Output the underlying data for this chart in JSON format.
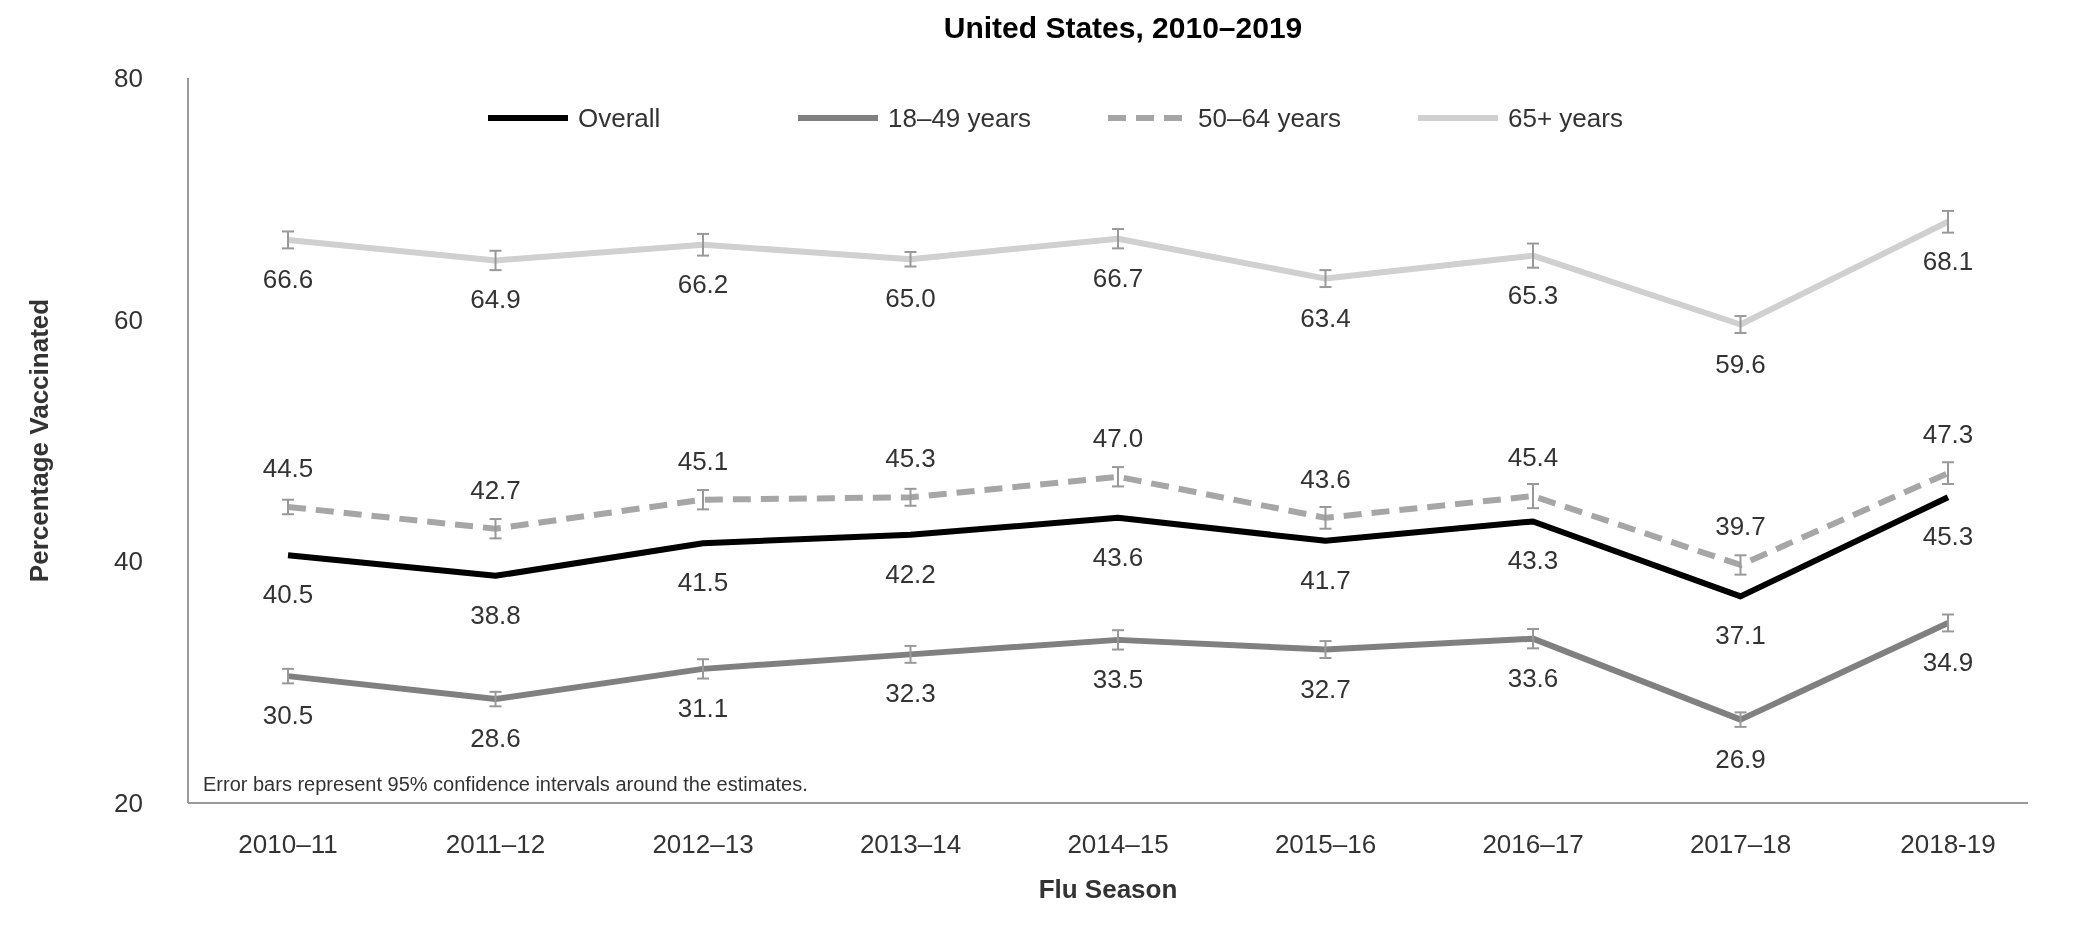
{
  "chart_data": {
    "type": "line",
    "title": "United States, 2010–2019",
    "xlabel": "Flu Season",
    "ylabel": "Percentage Vaccinated",
    "categories": [
      "2010–11",
      "2011–12",
      "2012–13",
      "2013–14",
      "2014–15",
      "2015–16",
      "2016–17",
      "2017–18",
      "2018-19"
    ],
    "ylim": [
      20,
      80
    ],
    "yticks": [
      20,
      40,
      60,
      80
    ],
    "grid": false,
    "legend": "top",
    "marker": "none",
    "annotations": [
      "Error bars represent 95% confidence  intervals  around  the  estimates."
    ],
    "series": [
      {
        "name": "Overall",
        "color": "#000000",
        "line_style": "solid",
        "values": [
          40.5,
          38.8,
          41.5,
          42.2,
          43.6,
          41.7,
          43.3,
          37.1,
          45.3
        ],
        "value_labels": [
          "40.5",
          "38.8",
          "41.5",
          "42.2",
          "43.6",
          "41.7",
          "43.3",
          "37.1",
          "45.3"
        ]
      },
      {
        "name": "18–49 years",
        "color": "#808080",
        "line_style": "solid",
        "values": [
          30.5,
          28.6,
          31.1,
          32.3,
          33.5,
          32.7,
          33.6,
          26.9,
          34.9
        ],
        "errors": [
          0.6,
          0.6,
          0.8,
          0.7,
          0.8,
          0.7,
          0.8,
          0.6,
          0.7
        ],
        "value_labels": [
          "30.5",
          "28.6",
          "31.1",
          "32.3",
          "33.5",
          "32.7",
          "33.6",
          "26.9",
          "34.9"
        ]
      },
      {
        "name": "50–64 years",
        "color": "#a6a6a6",
        "line_style": "dashed",
        "values": [
          44.5,
          42.7,
          45.1,
          45.3,
          47.0,
          43.6,
          45.4,
          39.7,
          47.3
        ],
        "errors": [
          0.6,
          0.8,
          0.8,
          0.7,
          0.8,
          0.9,
          1.0,
          0.8,
          0.9
        ],
        "value_labels": [
          "44.5",
          "42.7",
          "45.1",
          "45.3",
          "47.0",
          "43.6",
          "45.4",
          "39.7",
          "47.3"
        ]
      },
      {
        "name": "65+ years",
        "color": "#d0d0d0",
        "line_style": "solid",
        "values": [
          66.6,
          64.9,
          66.2,
          65.0,
          66.7,
          63.4,
          65.3,
          59.6,
          68.1
        ],
        "errors": [
          0.7,
          0.8,
          0.9,
          0.6,
          0.8,
          0.7,
          1.0,
          0.7,
          0.9
        ],
        "value_labels": [
          "66.6",
          "64.9",
          "66.2",
          "65.0",
          "66.7",
          "63.4",
          "65.3",
          "59.6",
          "68.1"
        ]
      }
    ]
  }
}
